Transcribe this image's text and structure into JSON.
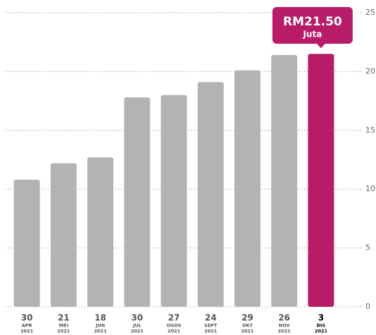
{
  "chart_data": {
    "type": "bar",
    "categories": [
      [
        "30",
        "APR",
        "2021"
      ],
      [
        "21",
        "MEI",
        "2021"
      ],
      [
        "18",
        "JUN",
        "2021"
      ],
      [
        "30",
        "JUL",
        "2021"
      ],
      [
        "27",
        "OGOS",
        "2021"
      ],
      [
        "24",
        "SEPT",
        "2021"
      ],
      [
        "29",
        "OKT",
        "2021"
      ],
      [
        "26",
        "NOV",
        "2021"
      ],
      [
        "3",
        "DIS",
        "2021"
      ]
    ],
    "values": [
      10.8,
      12.2,
      12.7,
      17.8,
      18.0,
      19.1,
      20.1,
      21.4,
      21.5
    ],
    "colors": [
      "#b3b3b3",
      "#b3b3b3",
      "#b3b3b3",
      "#b3b3b3",
      "#b3b3b3",
      "#b3b3b3",
      "#b3b3b3",
      "#b3b3b3",
      "#b81c68"
    ],
    "ylim": [
      0,
      25
    ],
    "yticks": [
      0,
      5,
      10,
      15,
      20,
      25
    ],
    "grid": true,
    "annotation": {
      "text": "RM21.50",
      "subtext": "Juta",
      "color": "#b81c68"
    }
  }
}
